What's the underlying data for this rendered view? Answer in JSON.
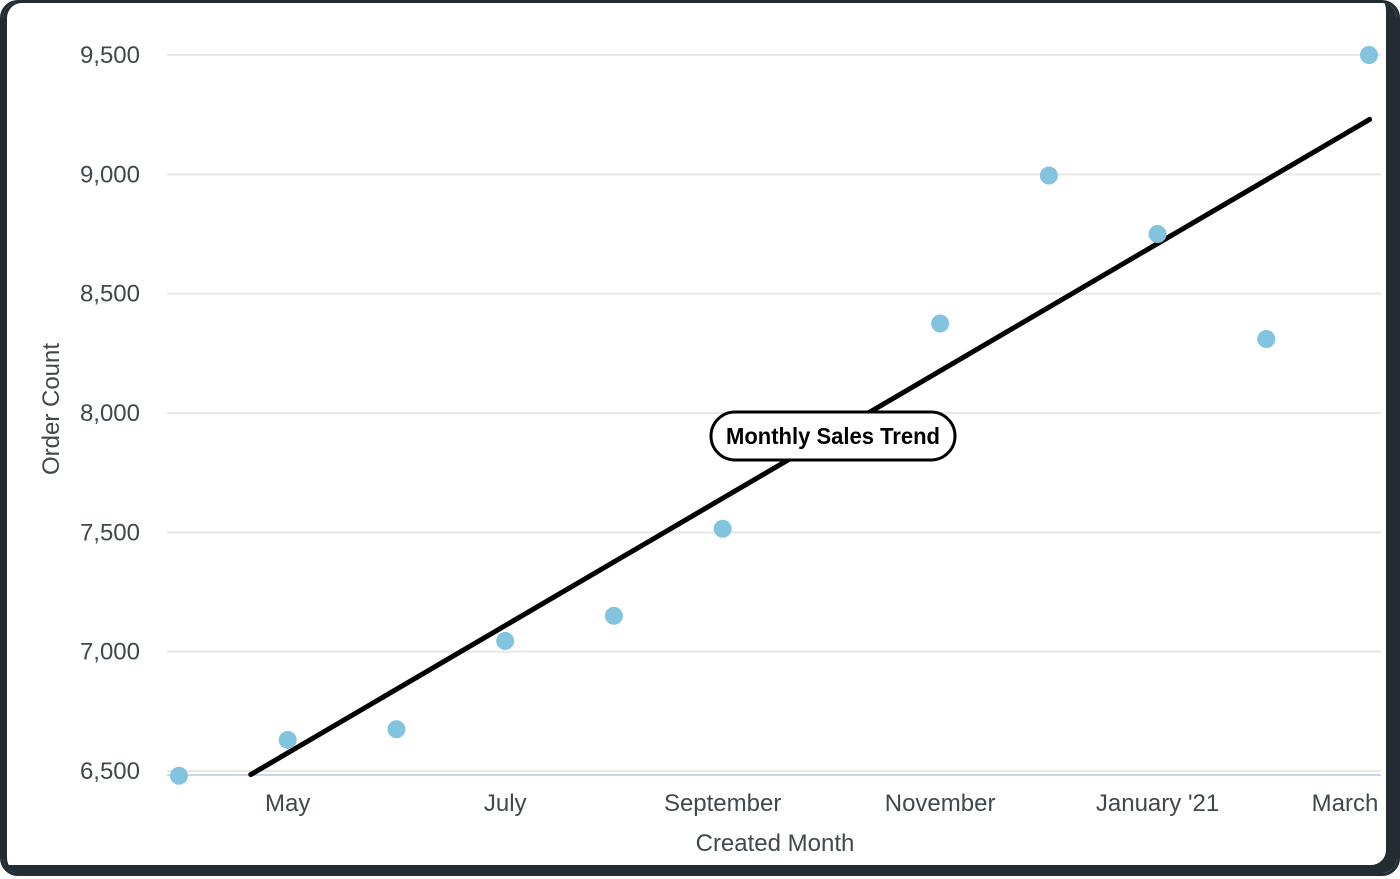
{
  "chart_data": {
    "type": "scatter",
    "title_label": "Monthly Sales Trend",
    "xlabel": "Created Month",
    "ylabel": "Order Count",
    "grid": "horizontal",
    "legend": "none",
    "y_axis": {
      "min": 6500,
      "max": 9500,
      "tick_step": 500,
      "ticks": [
        {
          "value": 9500,
          "label": "9,500"
        },
        {
          "value": 9000,
          "label": "9,000"
        },
        {
          "value": 8500,
          "label": "8,500"
        },
        {
          "value": 8000,
          "label": "8,000"
        },
        {
          "value": 7500,
          "label": "7,500"
        },
        {
          "value": 7000,
          "label": "7,000"
        },
        {
          "value": 6500,
          "label": "6,500"
        }
      ]
    },
    "x_axis": {
      "ticks": [
        {
          "month_index": 1,
          "label": "May"
        },
        {
          "month_index": 3,
          "label": "July"
        },
        {
          "month_index": 5,
          "label": "September"
        },
        {
          "month_index": 7,
          "label": "November"
        },
        {
          "month_index": 9,
          "label": "January '21"
        },
        {
          "month_index": 11,
          "label": "March"
        }
      ]
    },
    "series": [
      {
        "name": "Order Count",
        "points": [
          {
            "month": "April",
            "month_index": 0,
            "order_count": 6480
          },
          {
            "month": "May",
            "month_index": 1,
            "order_count": 6630
          },
          {
            "month": "June",
            "month_index": 2,
            "order_count": 6675
          },
          {
            "month": "July",
            "month_index": 3,
            "order_count": 7045
          },
          {
            "month": "August",
            "month_index": 4,
            "order_count": 7150
          },
          {
            "month": "September",
            "month_index": 5,
            "order_count": 7515
          },
          {
            "month": "November",
            "month_index": 7,
            "order_count": 8375
          },
          {
            "month": "December",
            "month_index": 8,
            "order_count": 8995
          },
          {
            "month": "January '21",
            "month_index": 9,
            "order_count": 8750
          },
          {
            "month": "February",
            "month_index": 10,
            "order_count": 8310
          },
          {
            "month": "March",
            "month_index": 11,
            "order_count": 9500
          }
        ]
      }
    ],
    "trendline": {
      "start": {
        "month_index": 0.66,
        "value": 6485
      },
      "end": {
        "month_index": 10.95,
        "value": 9230
      }
    },
    "colors": {
      "point": "#82c3e0",
      "trend_line": "#000000",
      "gridline": "#e8e8e8",
      "axis_line": "#ccd6eb",
      "tick_text": "#3f484d",
      "label_pill_bg": "#ffffff",
      "label_pill_border": "#000000",
      "frame": "#232d31"
    }
  }
}
